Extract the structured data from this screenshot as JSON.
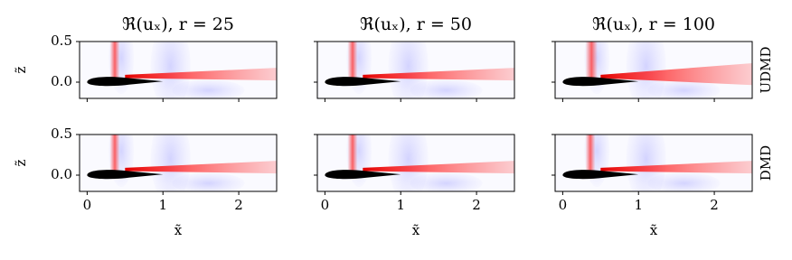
{
  "chart_data": [
    {
      "type": "field",
      "title": "ℜ(uₓ), r = 25",
      "ylabel": "z̃",
      "xlim": [
        -0.1,
        2.5
      ],
      "ylim": [
        -0.2,
        0.5
      ],
      "xticks": [
        0,
        1,
        2
      ],
      "yticks": [
        {
          "value": 0,
          "label": "0.0"
        },
        0.5
      ],
      "show_xticklabels": false,
      "show_yticklabels": true
    },
    {
      "type": "field",
      "title": "ℜ(uₓ), r = 50",
      "xlim": [
        -0.1,
        2.5
      ],
      "ylim": [
        -0.2,
        0.5
      ],
      "xticks": [
        0,
        1,
        2
      ],
      "yticks": [
        0,
        0.5
      ],
      "show_xticklabels": false,
      "show_yticklabels": false
    },
    {
      "type": "field",
      "title": "ℜ(uₓ), r = 100",
      "row_label": "UDMD",
      "xlim": [
        -0.1,
        2.5
      ],
      "ylim": [
        -0.2,
        0.5
      ],
      "xticks": [
        0,
        1,
        2
      ],
      "yticks": [
        0,
        0.5
      ],
      "show_xticklabels": false,
      "show_yticklabels": false
    },
    {
      "type": "field",
      "ylabel": "z̃",
      "xlabel": "x̃",
      "xlim": [
        -0.1,
        2.5
      ],
      "ylim": [
        -0.2,
        0.5
      ],
      "xticks": [
        0,
        1,
        2
      ],
      "yticks": [
        {
          "value": 0,
          "label": "0.0"
        },
        0.5
      ],
      "show_xticklabels": true,
      "show_yticklabels": true
    },
    {
      "type": "field",
      "xlabel": "x̃",
      "xlim": [
        -0.1,
        2.5
      ],
      "ylim": [
        -0.2,
        0.5
      ],
      "xticks": [
        0,
        1,
        2
      ],
      "yticks": [
        0,
        0.5
      ],
      "show_xticklabels": true,
      "show_yticklabels": false
    },
    {
      "type": "field",
      "xlabel": "x̃",
      "row_label": "DMD",
      "xlim": [
        -0.1,
        2.5
      ],
      "ylim": [
        -0.2,
        0.5
      ],
      "xticks": [
        0,
        1,
        2
      ],
      "yticks": [
        0,
        0.5
      ],
      "show_xticklabels": true,
      "show_yticklabels": false
    }
  ]
}
